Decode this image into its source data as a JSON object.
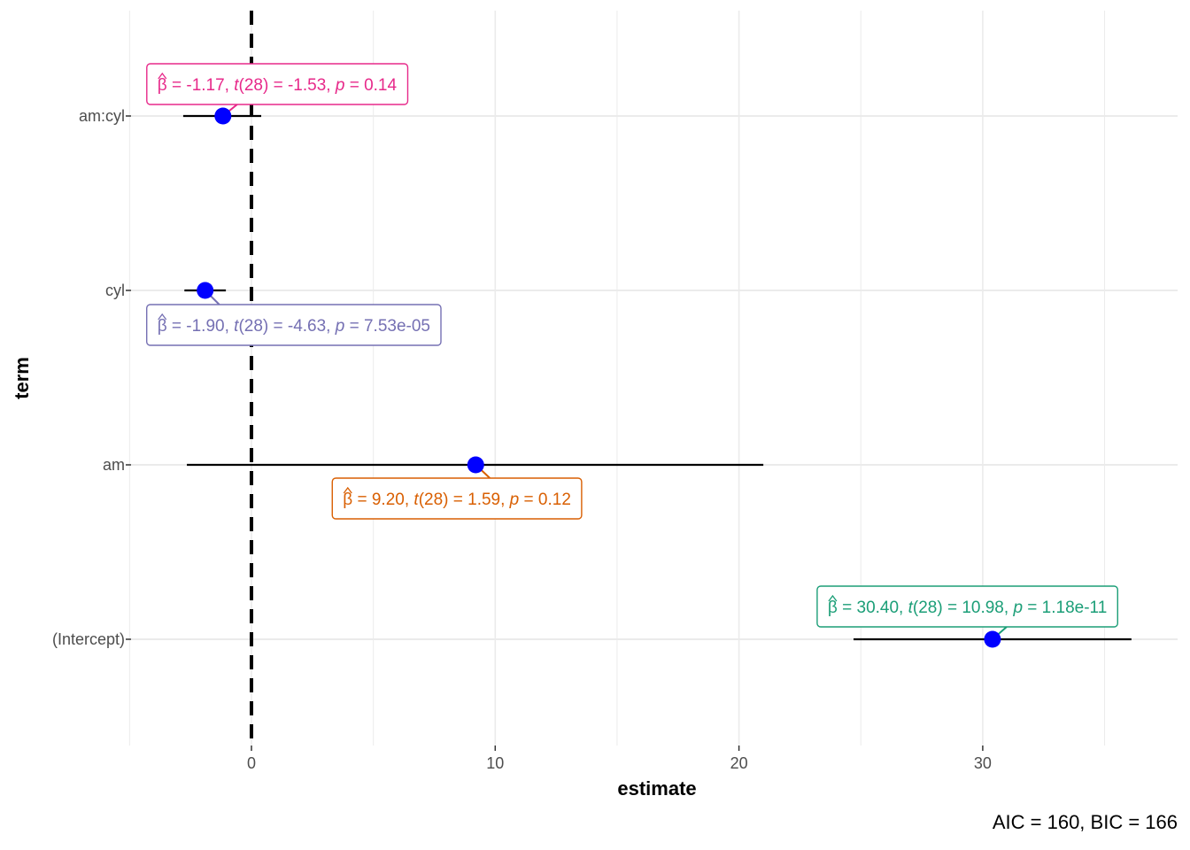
{
  "chart_data": {
    "type": "scatter",
    "subtype": "coefficient-dot-and-whisker",
    "xlabel": "estimate",
    "ylabel": "term",
    "xlim": [
      -5,
      38
    ],
    "x_ticks": [
      0,
      10,
      20,
      30
    ],
    "x_tick_labels": [
      "0",
      "10",
      "20",
      "30"
    ],
    "grid": true,
    "reference_line": {
      "x": 0,
      "style": "dashed",
      "color": "#000000"
    },
    "point_color": "#0000ff",
    "caption": "AIC = 160, BIC = 166",
    "terms": [
      {
        "name": "am:cyl",
        "estimate": -1.17,
        "ci_low": -2.8,
        "ci_high": 0.4,
        "color": "#e7298a",
        "label": {
          "beta": "-1.17",
          "df": "28",
          "t": "-1.53",
          "p": "0.14"
        },
        "label_side": "above"
      },
      {
        "name": "cyl",
        "estimate": -1.9,
        "ci_low": -2.75,
        "ci_high": -1.05,
        "color": "#7570b3",
        "label": {
          "beta": "-1.90",
          "df": "28",
          "t": "-4.63",
          "p": "7.53e-05"
        },
        "label_side": "below"
      },
      {
        "name": "am",
        "estimate": 9.2,
        "ci_low": -2.65,
        "ci_high": 21.0,
        "color": "#d95f02",
        "label": {
          "beta": "9.20",
          "df": "28",
          "t": "1.59",
          "p": "0.12"
        },
        "label_side": "below"
      },
      {
        "name": "(Intercept)",
        "estimate": 30.4,
        "ci_low": 24.7,
        "ci_high": 36.1,
        "color": "#1b9e77",
        "label": {
          "beta": "30.40",
          "df": "28",
          "t": "10.98",
          "p": "1.18e-11"
        },
        "label_side": "above"
      }
    ]
  }
}
